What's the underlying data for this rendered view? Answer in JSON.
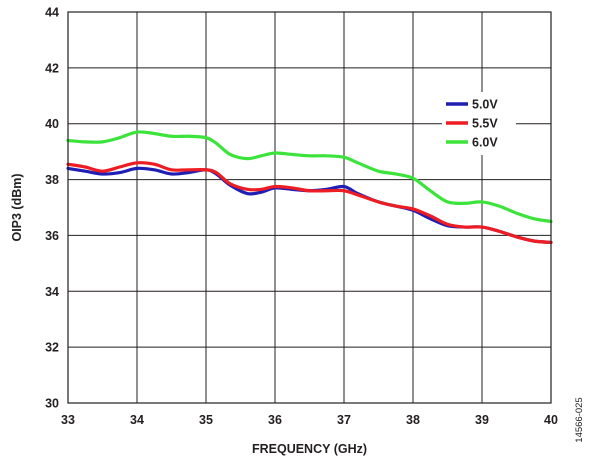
{
  "chart_data": {
    "type": "line",
    "title": "",
    "xlabel": "FREQUENCY (GHz)",
    "ylabel": "OIP3 (dBm)",
    "xlim": [
      33,
      40
    ],
    "ylim": [
      30,
      44
    ],
    "xticks": [
      33,
      34,
      35,
      36,
      37,
      38,
      39,
      40
    ],
    "yticks": [
      30,
      32,
      34,
      36,
      38,
      40,
      42,
      44
    ],
    "grid": true,
    "legend_position": "top-right",
    "series": [
      {
        "name": "5.0V",
        "color": "#1f1fb4",
        "points": [
          [
            33,
            38.4
          ],
          [
            33.25,
            38.3
          ],
          [
            33.5,
            38.2
          ],
          [
            33.75,
            38.25
          ],
          [
            34,
            38.4
          ],
          [
            34.25,
            38.35
          ],
          [
            34.5,
            38.2
          ],
          [
            34.75,
            38.25
          ],
          [
            35,
            38.35
          ],
          [
            35.15,
            38.2
          ],
          [
            35.35,
            37.8
          ],
          [
            35.6,
            37.5
          ],
          [
            35.8,
            37.55
          ],
          [
            36,
            37.7
          ],
          [
            36.25,
            37.65
          ],
          [
            36.5,
            37.6
          ],
          [
            36.75,
            37.65
          ],
          [
            37,
            37.75
          ],
          [
            37.2,
            37.5
          ],
          [
            37.5,
            37.2
          ],
          [
            37.75,
            37.05
          ],
          [
            38,
            36.9
          ],
          [
            38.25,
            36.6
          ],
          [
            38.5,
            36.35
          ],
          [
            38.75,
            36.3
          ],
          [
            39,
            36.3
          ],
          [
            39.25,
            36.15
          ],
          [
            39.5,
            35.95
          ],
          [
            39.75,
            35.8
          ],
          [
            40,
            35.75
          ]
        ]
      },
      {
        "name": "5.5V",
        "color": "#ee1d24",
        "points": [
          [
            33,
            38.55
          ],
          [
            33.25,
            38.45
          ],
          [
            33.5,
            38.3
          ],
          [
            33.75,
            38.45
          ],
          [
            34,
            38.6
          ],
          [
            34.25,
            38.55
          ],
          [
            34.5,
            38.35
          ],
          [
            34.75,
            38.35
          ],
          [
            35,
            38.35
          ],
          [
            35.15,
            38.25
          ],
          [
            35.35,
            37.85
          ],
          [
            35.6,
            37.65
          ],
          [
            35.8,
            37.65
          ],
          [
            36,
            37.75
          ],
          [
            36.25,
            37.7
          ],
          [
            36.5,
            37.6
          ],
          [
            36.75,
            37.6
          ],
          [
            37,
            37.6
          ],
          [
            37.2,
            37.45
          ],
          [
            37.5,
            37.2
          ],
          [
            37.75,
            37.05
          ],
          [
            38,
            36.95
          ],
          [
            38.25,
            36.7
          ],
          [
            38.5,
            36.4
          ],
          [
            38.75,
            36.3
          ],
          [
            39,
            36.3
          ],
          [
            39.25,
            36.15
          ],
          [
            39.5,
            35.95
          ],
          [
            39.75,
            35.8
          ],
          [
            40,
            35.75
          ]
        ]
      },
      {
        "name": "6.0V",
        "color": "#3be33b",
        "points": [
          [
            33,
            39.4
          ],
          [
            33.25,
            39.35
          ],
          [
            33.5,
            39.35
          ],
          [
            33.75,
            39.5
          ],
          [
            34,
            39.7
          ],
          [
            34.25,
            39.65
          ],
          [
            34.5,
            39.55
          ],
          [
            34.75,
            39.55
          ],
          [
            35,
            39.5
          ],
          [
            35.15,
            39.3
          ],
          [
            35.35,
            38.9
          ],
          [
            35.6,
            38.75
          ],
          [
            35.8,
            38.85
          ],
          [
            36,
            38.95
          ],
          [
            36.25,
            38.9
          ],
          [
            36.5,
            38.85
          ],
          [
            36.75,
            38.85
          ],
          [
            37,
            38.8
          ],
          [
            37.2,
            38.6
          ],
          [
            37.5,
            38.3
          ],
          [
            37.75,
            38.2
          ],
          [
            38,
            38.05
          ],
          [
            38.25,
            37.6
          ],
          [
            38.5,
            37.2
          ],
          [
            38.75,
            37.15
          ],
          [
            39,
            37.2
          ],
          [
            39.25,
            37.05
          ],
          [
            39.5,
            36.8
          ],
          [
            39.75,
            36.6
          ],
          [
            40,
            36.5
          ]
        ]
      }
    ],
    "figure_id": "14566-025"
  }
}
